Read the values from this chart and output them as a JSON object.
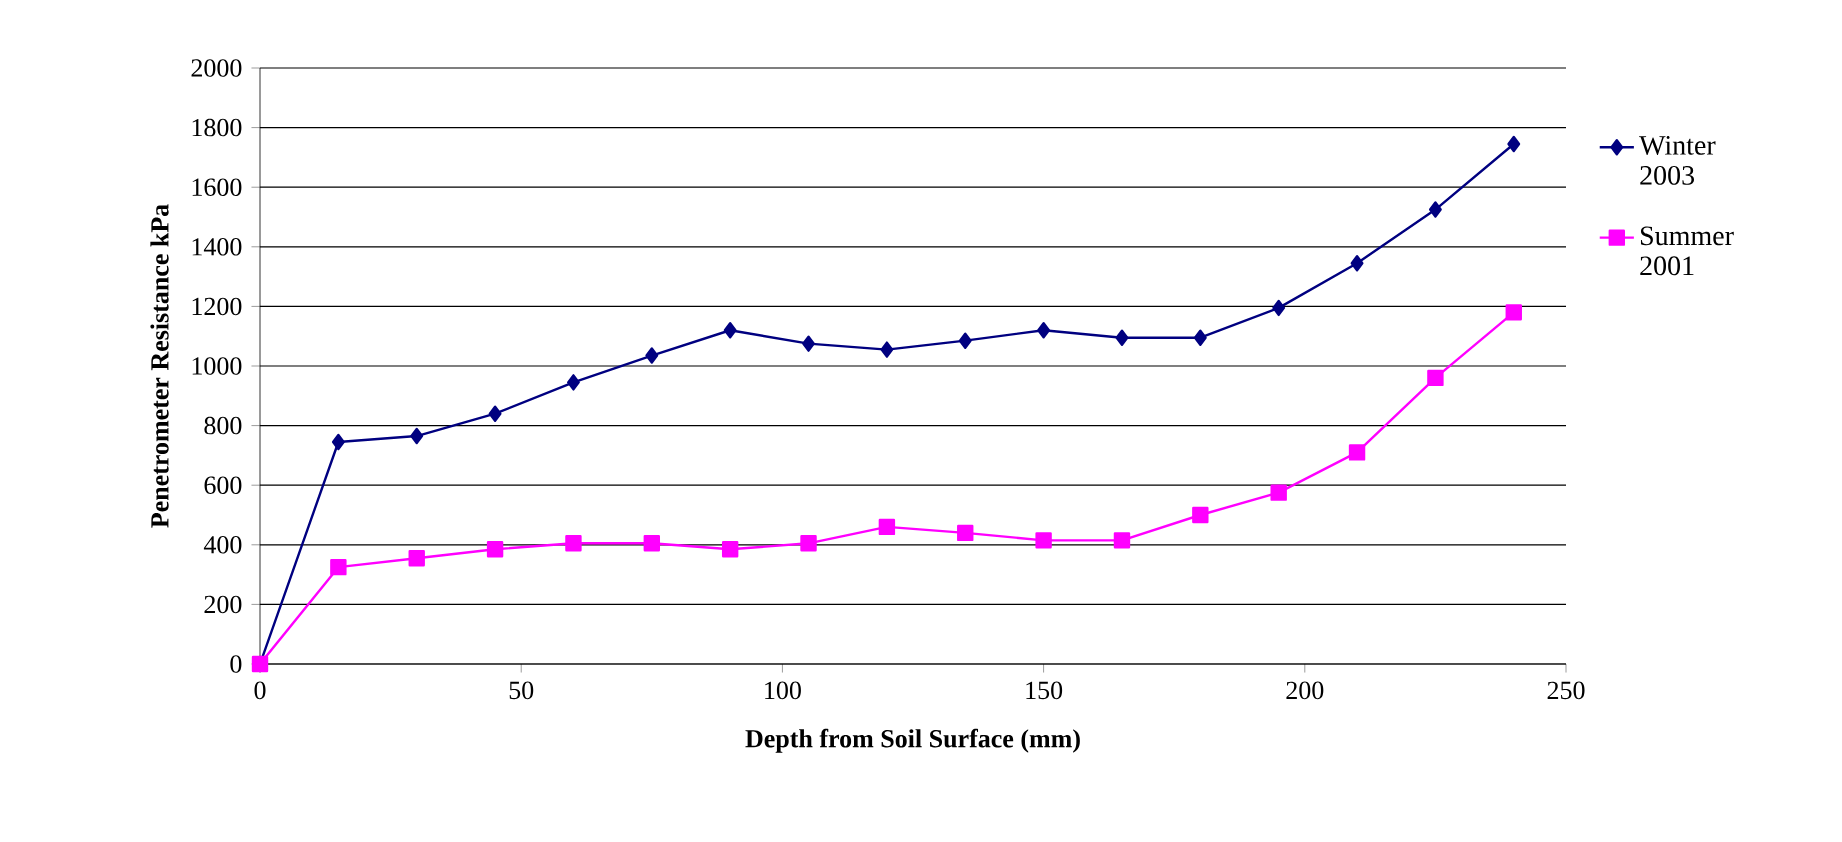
{
  "chart_data": {
    "type": "line",
    "xlabel": "Depth from Soil Surface (mm)",
    "ylabel": "Penetrometer Resistance kPa",
    "x": [
      0,
      15,
      30,
      45,
      60,
      75,
      90,
      105,
      120,
      135,
      150,
      165,
      180,
      195,
      210,
      225,
      240
    ],
    "series": [
      {
        "name": "Winter 2003",
        "color": "#000080",
        "marker": "diamond",
        "values": [
          0,
          745,
          765,
          840,
          945,
          1035,
          1120,
          1075,
          1055,
          1085,
          1120,
          1095,
          1095,
          1195,
          1345,
          1525,
          1745
        ]
      },
      {
        "name": "Summer 2001",
        "color": "#ff00ff",
        "marker": "square",
        "values": [
          0,
          325,
          355,
          385,
          405,
          405,
          385,
          405,
          460,
          440,
          415,
          415,
          500,
          575,
          710,
          960,
          1180
        ]
      }
    ],
    "xlim": [
      0,
      250
    ],
    "xticks": [
      0,
      50,
      100,
      150,
      200,
      250
    ],
    "ylim": [
      0,
      2000
    ],
    "yticks": [
      0,
      200,
      400,
      600,
      800,
      1000,
      1200,
      1400,
      1600,
      1800,
      2000
    ],
    "grid": "y",
    "legend": "right",
    "line_style": "solid"
  }
}
